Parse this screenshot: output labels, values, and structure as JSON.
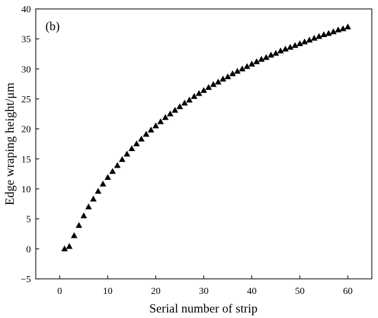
{
  "chart_data": {
    "type": "scatter",
    "panel_label": "(b)",
    "xlabel": "Serial number of strip",
    "ylabel": "Edge wraping height/μm",
    "xlim": [
      -5,
      65
    ],
    "ylim": [
      -5,
      40
    ],
    "xticks": [
      0,
      10,
      20,
      30,
      40,
      50,
      60
    ],
    "yticks": [
      -5,
      0,
      5,
      10,
      15,
      20,
      25,
      30,
      35,
      40
    ],
    "grid": false,
    "marker": "triangle",
    "marker_color": "#000000",
    "series": [
      {
        "x": [
          1,
          2,
          3,
          4,
          5,
          6,
          7,
          8,
          9,
          10,
          11,
          12,
          13,
          14,
          15,
          16,
          17,
          18,
          19,
          20,
          21,
          22,
          23,
          24,
          25,
          26,
          27,
          28,
          29,
          30,
          31,
          32,
          33,
          34,
          35,
          36,
          37,
          38,
          39,
          40,
          41,
          42,
          43,
          44,
          45,
          46,
          47,
          48,
          49,
          50,
          51,
          52,
          53,
          54,
          55,
          56,
          57,
          58,
          59,
          60
        ],
        "y": [
          0.0,
          0.4,
          2.2,
          3.9,
          5.5,
          7.0,
          8.3,
          9.6,
          10.8,
          11.9,
          12.9,
          13.9,
          14.9,
          15.8,
          16.7,
          17.5,
          18.3,
          19.1,
          19.8,
          20.5,
          21.2,
          21.9,
          22.5,
          23.1,
          23.7,
          24.3,
          24.8,
          25.4,
          25.9,
          26.4,
          26.9,
          27.4,
          27.8,
          28.3,
          28.7,
          29.2,
          29.6,
          30.0,
          30.4,
          30.8,
          31.2,
          31.6,
          31.9,
          32.3,
          32.6,
          33.0,
          33.3,
          33.6,
          33.9,
          34.2,
          34.5,
          34.8,
          35.1,
          35.4,
          35.7,
          35.9,
          36.2,
          36.5,
          36.7,
          37.0
        ]
      }
    ]
  }
}
